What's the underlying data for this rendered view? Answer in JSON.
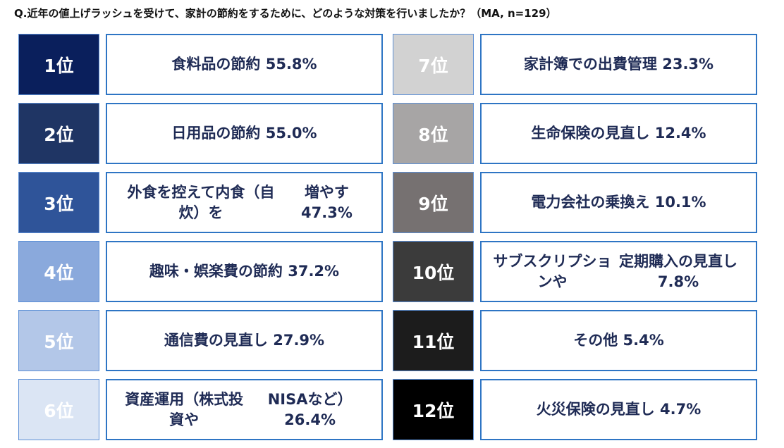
{
  "title": "Q.近年の値上げラッシュを受けて、家計の節約をするために、どのような対策を行いましたか？（MA, n=129）",
  "chart_data": {
    "type": "table",
    "title": "Q.近年の値上げラッシュを受けて、家計の節約をするために、どのような対策を行いましたか？（MA, n=129）",
    "items": [
      {
        "rank": "1位",
        "lines": [
          "食料品の節約 55.8%"
        ],
        "value": 55.8,
        "color": "#0a1f5c",
        "text_color": "#ffffff"
      },
      {
        "rank": "2位",
        "lines": [
          "日用品の節約 55.0%"
        ],
        "value": 55.0,
        "color": "#1f3564",
        "text_color": "#ffffff"
      },
      {
        "rank": "3位",
        "lines": [
          "外食を控えて内食（自炊）を",
          "増やす 47.3%"
        ],
        "value": 47.3,
        "color": "#2f5499",
        "text_color": "#ffffff"
      },
      {
        "rank": "4位",
        "lines": [
          "趣味・娯楽費の節約 37.2%"
        ],
        "value": 37.2,
        "color": "#8aa9dc",
        "text_color": "#ffffff"
      },
      {
        "rank": "5位",
        "lines": [
          "通信費の見直し 27.9%"
        ],
        "value": 27.9,
        "color": "#b3c7e8",
        "text_color": "#ffffff"
      },
      {
        "rank": "6位",
        "lines": [
          "資産運用（株式投資や",
          "NISAなど）26.4%"
        ],
        "value": 26.4,
        "color": "#dbe5f4",
        "text_color": "#ffffff"
      },
      {
        "rank": "7位",
        "lines": [
          "家計簿での出費管理 23.3%"
        ],
        "value": 23.3,
        "color": "#d2d2d2",
        "text_color": "#ffffff"
      },
      {
        "rank": "8位",
        "lines": [
          "生命保険の見直し 12.4%"
        ],
        "value": 12.4,
        "color": "#a7a5a5",
        "text_color": "#ffffff"
      },
      {
        "rank": "9位",
        "lines": [
          "電力会社の乗換え 10.1%"
        ],
        "value": 10.1,
        "color": "#767171",
        "text_color": "#ffffff"
      },
      {
        "rank": "10位",
        "lines": [
          "サブスクリプションや",
          "定期購入の見直し 7.8%"
        ],
        "value": 7.8,
        "color": "#3b3b3b",
        "text_color": "#ffffff"
      },
      {
        "rank": "11位",
        "lines": [
          "その他 5.4%"
        ],
        "value": 5.4,
        "color": "#1c1c1c",
        "text_color": "#ffffff"
      },
      {
        "rank": "12位",
        "lines": [
          "火災保険の見直し 4.7%"
        ],
        "value": 4.7,
        "color": "#000000",
        "text_color": "#ffffff"
      }
    ]
  }
}
